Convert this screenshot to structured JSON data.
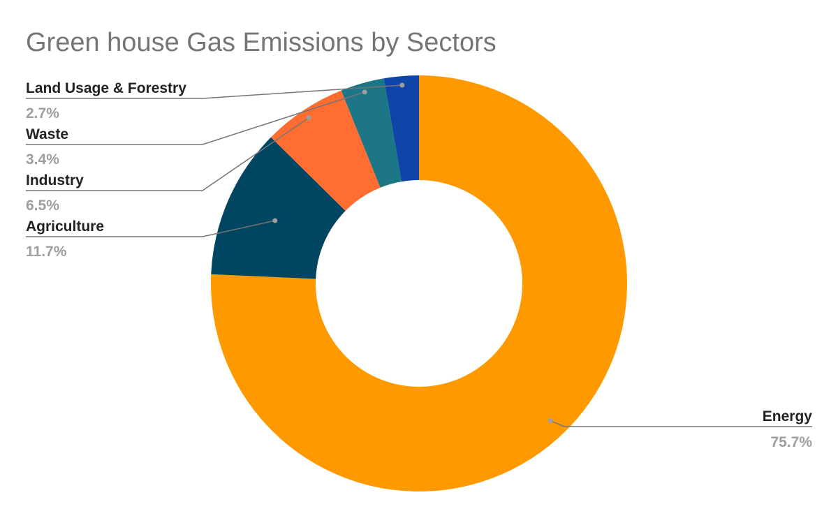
{
  "chart_data": {
    "type": "pie",
    "donut": true,
    "title": "Green house Gas Emissions by Sectors",
    "slices": [
      {
        "label": "Energy",
        "value": 75.7,
        "value_label": "75.7%",
        "color": "#ff9900"
      },
      {
        "label": "Agriculture",
        "value": 11.7,
        "value_label": "11.7%",
        "color": "#004561"
      },
      {
        "label": "Industry",
        "value": 6.5,
        "value_label": "6.5%",
        "color": "#ff6d31"
      },
      {
        "label": "Waste",
        "value": 3.4,
        "value_label": "3.4%",
        "color": "#1c7685"
      },
      {
        "label": "Land Usage & Forestry",
        "value": 2.7,
        "value_label": "2.7%",
        "color": "#0f45a8"
      }
    ],
    "legend": "none",
    "label_placement": "outside with leader lines"
  }
}
